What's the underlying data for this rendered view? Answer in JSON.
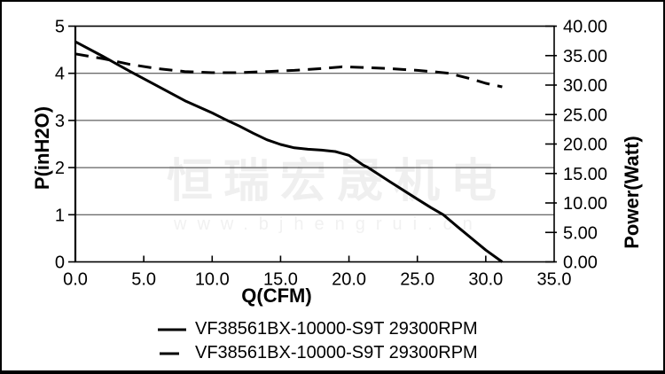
{
  "watermark": {
    "cn_text": "恒瑞宏晟机电",
    "url_text": "www.bjhengrui.cn"
  },
  "colors": {
    "line": "#000000",
    "grid": "#3a3a3a",
    "axis": "#000000",
    "background": "#ffffff",
    "watermark": "#efefef"
  },
  "chart_data": {
    "type": "line",
    "title": "",
    "xlabel": "Q(CFM)",
    "ylabel_left": "P(inH2O)",
    "ylabel_right": "Power(Watt)",
    "x_range": [
      0,
      35
    ],
    "y_left_range": [
      0,
      5
    ],
    "y_right_range": [
      0,
      40
    ],
    "grid": "horizontal-only",
    "legend_position": "bottom",
    "x_ticks": [
      {
        "v": 0,
        "label": "0.0"
      },
      {
        "v": 5,
        "label": "5.0"
      },
      {
        "v": 10,
        "label": "10.0"
      },
      {
        "v": 15,
        "label": "15.0"
      },
      {
        "v": 20,
        "label": "20.0"
      },
      {
        "v": 25,
        "label": "25.0"
      },
      {
        "v": 30,
        "label": "30.0"
      },
      {
        "v": 35,
        "label": "35.0"
      }
    ],
    "y_left_ticks": [
      {
        "v": 5,
        "label": "5"
      },
      {
        "v": 4,
        "label": "4"
      },
      {
        "v": 3,
        "label": "3"
      },
      {
        "v": 2,
        "label": "2"
      },
      {
        "v": 1,
        "label": "1"
      },
      {
        "v": 0,
        "label": "0"
      }
    ],
    "y_right_ticks": [
      {
        "v": 40,
        "label": "40.00"
      },
      {
        "v": 35,
        "label": "35.00"
      },
      {
        "v": 30,
        "label": "30.00"
      },
      {
        "v": 25,
        "label": "25.00"
      },
      {
        "v": 20,
        "label": "20.00"
      },
      {
        "v": 15,
        "label": "15.00"
      },
      {
        "v": 10,
        "label": "10.00"
      },
      {
        "v": 5,
        "label": "5.00"
      },
      {
        "v": 0,
        "label": "0.00"
      }
    ],
    "series": [
      {
        "name": "VF38561BX-10000-S9T 29300RPM",
        "style": "solid",
        "axis": "left",
        "unit": "inH2O",
        "points": [
          [
            0,
            4.67
          ],
          [
            2,
            4.36
          ],
          [
            4,
            4.04
          ],
          [
            6,
            3.73
          ],
          [
            8,
            3.42
          ],
          [
            10,
            3.16
          ],
          [
            11.1,
            3.0
          ],
          [
            12,
            2.88
          ],
          [
            13,
            2.73
          ],
          [
            14,
            2.59
          ],
          [
            15,
            2.49
          ],
          [
            16,
            2.42
          ],
          [
            17,
            2.39
          ],
          [
            18,
            2.37
          ],
          [
            19,
            2.34
          ],
          [
            20,
            2.26
          ],
          [
            21,
            2.06
          ],
          [
            21.4,
            2.0
          ],
          [
            23,
            1.7
          ],
          [
            25,
            1.33
          ],
          [
            26,
            1.15
          ],
          [
            26.9,
            1.0
          ],
          [
            28,
            0.73
          ],
          [
            29,
            0.49
          ],
          [
            30,
            0.25
          ],
          [
            31.2,
            0.0
          ]
        ]
      },
      {
        "name": "VF38561BX-10000-S9T 29300RPM",
        "style": "dashed",
        "axis": "right",
        "unit": "Watt",
        "points": [
          [
            0,
            35.3
          ],
          [
            2,
            34.5
          ],
          [
            4,
            33.5
          ],
          [
            6,
            32.8
          ],
          [
            8,
            32.3
          ],
          [
            10,
            32.1
          ],
          [
            12,
            32.1
          ],
          [
            14,
            32.3
          ],
          [
            16,
            32.5
          ],
          [
            18,
            32.8
          ],
          [
            19.5,
            33.1
          ],
          [
            21,
            33.0
          ],
          [
            23,
            32.8
          ],
          [
            25,
            32.5
          ],
          [
            26,
            32.3
          ],
          [
            27.3,
            32.0
          ],
          [
            28,
            31.6
          ],
          [
            29,
            31.0
          ],
          [
            30,
            30.3
          ],
          [
            31.2,
            29.7
          ]
        ]
      }
    ]
  }
}
